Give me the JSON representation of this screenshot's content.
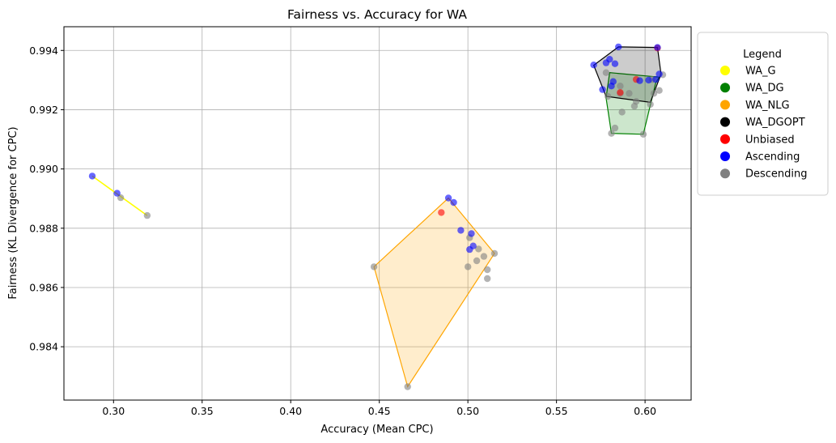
{
  "chart_data": {
    "type": "scatter",
    "title": "Fairness vs. Accuracy for WA",
    "xlabel": "Accuracy (Mean CPC)",
    "ylabel": "Fairness (KL Divergence for CPC)",
    "xlim": [
      0.272,
      0.626
    ],
    "ylim": [
      0.9822,
      0.9948
    ],
    "xticks": [
      0.3,
      0.35,
      0.4,
      0.45,
      0.5,
      0.55,
      0.6
    ],
    "xtick_labels": [
      "0.30",
      "0.35",
      "0.40",
      "0.45",
      "0.50",
      "0.55",
      "0.60"
    ],
    "yticks": [
      0.984,
      0.986,
      0.988,
      0.99,
      0.992,
      0.994
    ],
    "ytick_labels": [
      "0.984",
      "0.986",
      "0.988",
      "0.990",
      "0.992",
      "0.994"
    ],
    "grid": true,
    "legend": {
      "title": "Legend",
      "placement": "outside-right-top",
      "entries": [
        {
          "label": "WA_G",
          "color": "#ffff00"
        },
        {
          "label": "WA_DG",
          "color": "#008000"
        },
        {
          "label": "WA_NLG",
          "color": "#ffa500"
        },
        {
          "label": "WA_DGOPT",
          "color": "#000000"
        },
        {
          "label": "Unbiased",
          "color": "#ff0000"
        },
        {
          "label": "Ascending",
          "color": "#0000ff"
        },
        {
          "label": "Descending",
          "color": "#808080"
        }
      ]
    },
    "hulls": [
      {
        "group": "WA_G",
        "color": "#ffff00",
        "fill": false,
        "points": [
          [
            0.288,
            0.98976
          ],
          [
            0.319,
            0.98843
          ]
        ]
      },
      {
        "group": "WA_NLG",
        "color": "#ffa500",
        "fill": true,
        "points": [
          [
            0.447,
            0.9867
          ],
          [
            0.466,
            0.98265
          ],
          [
            0.515,
            0.98715
          ],
          [
            0.489,
            0.98902
          ]
        ]
      },
      {
        "group": "WA_DG",
        "color": "#008000",
        "fill": true,
        "points": [
          [
            0.578,
            0.9924
          ],
          [
            0.581,
            0.9912
          ],
          [
            0.599,
            0.99117
          ],
          [
            0.606,
            0.9929
          ],
          [
            0.608,
            0.9931
          ],
          [
            0.58,
            0.99325
          ]
        ]
      },
      {
        "group": "WA_DGOPT",
        "color": "#000000",
        "fill": true,
        "points": [
          [
            0.571,
            0.9935
          ],
          [
            0.585,
            0.99412
          ],
          [
            0.607,
            0.9941
          ],
          [
            0.609,
            0.9932
          ],
          [
            0.603,
            0.99225
          ],
          [
            0.578,
            0.99245
          ]
        ]
      }
    ],
    "series": [
      {
        "name": "Unbiased",
        "color": "#ff0000",
        "points": [
          [
            0.485,
            0.98853
          ],
          [
            0.595,
            0.99302
          ],
          [
            0.586,
            0.99258
          ],
          [
            0.607,
            0.99408
          ]
        ]
      },
      {
        "name": "Ascending",
        "color": "#0000ff",
        "points": [
          [
            0.288,
            0.98976
          ],
          [
            0.302,
            0.98918
          ],
          [
            0.489,
            0.98902
          ],
          [
            0.492,
            0.98887
          ],
          [
            0.496,
            0.98793
          ],
          [
            0.502,
            0.98782
          ],
          [
            0.503,
            0.9874
          ],
          [
            0.501,
            0.98728
          ],
          [
            0.571,
            0.99351
          ],
          [
            0.576,
            0.99268
          ],
          [
            0.578,
            0.99358
          ],
          [
            0.58,
            0.9937
          ],
          [
            0.582,
            0.99295
          ],
          [
            0.581,
            0.9928
          ],
          [
            0.583,
            0.99355
          ],
          [
            0.585,
            0.99412
          ],
          [
            0.597,
            0.99298
          ],
          [
            0.602,
            0.993
          ],
          [
            0.606,
            0.99302
          ],
          [
            0.607,
            0.9941
          ],
          [
            0.608,
            0.9932
          ]
        ]
      },
      {
        "name": "Descending",
        "color": "#808080",
        "points": [
          [
            0.304,
            0.98903
          ],
          [
            0.319,
            0.98843
          ],
          [
            0.447,
            0.9867
          ],
          [
            0.466,
            0.98265
          ],
          [
            0.5,
            0.9867
          ],
          [
            0.501,
            0.98768
          ],
          [
            0.505,
            0.9869
          ],
          [
            0.506,
            0.9873
          ],
          [
            0.509,
            0.98705
          ],
          [
            0.511,
            0.9866
          ],
          [
            0.511,
            0.9863
          ],
          [
            0.515,
            0.98715
          ],
          [
            0.578,
            0.99325
          ],
          [
            0.579,
            0.99245
          ],
          [
            0.581,
            0.9912
          ],
          [
            0.583,
            0.99138
          ],
          [
            0.586,
            0.9928
          ],
          [
            0.586,
            0.99255
          ],
          [
            0.587,
            0.99192
          ],
          [
            0.591,
            0.99255
          ],
          [
            0.594,
            0.99212
          ],
          [
            0.595,
            0.99228
          ],
          [
            0.599,
            0.99117
          ],
          [
            0.603,
            0.99218
          ],
          [
            0.604,
            0.99302
          ],
          [
            0.605,
            0.99255
          ],
          [
            0.608,
            0.99265
          ],
          [
            0.61,
            0.99318
          ]
        ]
      }
    ]
  }
}
